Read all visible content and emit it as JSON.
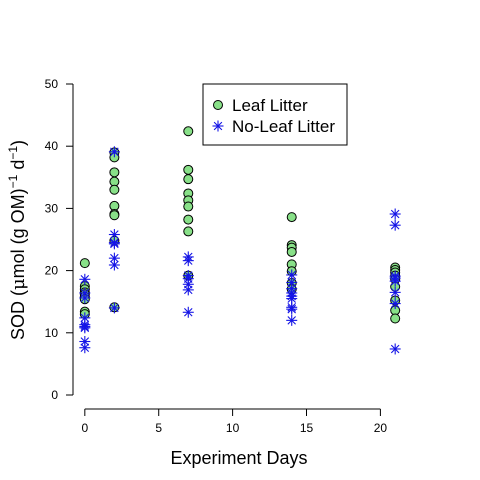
{
  "chart_data": {
    "type": "scatter",
    "title": "",
    "xlabel": "Experiment Days",
    "ylabel": {
      "prefix": "SOD (",
      "mu": "μ",
      "unit_pre_sup1": "mol (g OM)",
      "sup1": "−1",
      "unit_pre_sup2": " d",
      "sup2": "−1",
      "suffix": ")"
    },
    "xlim": [
      -0.8,
      21.8
    ],
    "ylim": [
      0,
      50
    ],
    "xticks": [
      0,
      5,
      10,
      15,
      20
    ],
    "yticks": [
      0,
      10,
      20,
      30,
      40,
      50
    ],
    "grid": false,
    "legend_position": "top-center",
    "series": [
      {
        "name": "Leaf Litter",
        "marker": "circle",
        "fill": "#88e088",
        "stroke": "#000000",
        "points": [
          [
            0,
            21.2
          ],
          [
            0,
            17.5
          ],
          [
            0,
            17.0
          ],
          [
            0,
            16.5
          ],
          [
            0,
            16.2
          ],
          [
            0,
            15.8
          ],
          [
            0,
            15.4
          ],
          [
            0,
            13.4
          ],
          [
            0,
            13.0
          ],
          [
            2,
            39.0
          ],
          [
            2,
            38.2
          ],
          [
            2,
            35.8
          ],
          [
            2,
            34.3
          ],
          [
            2,
            33.0
          ],
          [
            2,
            30.4
          ],
          [
            2,
            29.1
          ],
          [
            2,
            28.9
          ],
          [
            2,
            24.8
          ],
          [
            2,
            14.1
          ],
          [
            7,
            42.4
          ],
          [
            7,
            36.2
          ],
          [
            7,
            34.7
          ],
          [
            7,
            32.4
          ],
          [
            7,
            31.3
          ],
          [
            7,
            30.3
          ],
          [
            7,
            28.2
          ],
          [
            7,
            26.3
          ],
          [
            7,
            19.2
          ],
          [
            14,
            28.6
          ],
          [
            14,
            24.1
          ],
          [
            14,
            23.7
          ],
          [
            14,
            23.0
          ],
          [
            14,
            21.0
          ],
          [
            14,
            19.9
          ],
          [
            14,
            18.0
          ],
          [
            14,
            17.0
          ],
          [
            21,
            20.5
          ],
          [
            21,
            20.1
          ],
          [
            21,
            19.7
          ],
          [
            21,
            19.2
          ],
          [
            21,
            18.6
          ],
          [
            21,
            17.4
          ],
          [
            21,
            15.2
          ],
          [
            21,
            13.6
          ],
          [
            21,
            12.3
          ]
        ]
      },
      {
        "name": "No-Leaf Litter",
        "marker": "asterisk",
        "fill": "none",
        "stroke": "#1414e6",
        "points": [
          [
            0,
            18.6
          ],
          [
            0,
            16.4
          ],
          [
            0,
            15.6
          ],
          [
            0,
            12.4
          ],
          [
            0,
            11.3
          ],
          [
            0,
            11.0
          ],
          [
            0,
            10.8
          ],
          [
            0,
            8.6
          ],
          [
            0,
            7.6
          ],
          [
            2,
            39.1
          ],
          [
            2,
            25.8
          ],
          [
            2,
            24.5
          ],
          [
            2,
            24.3
          ],
          [
            2,
            22.0
          ],
          [
            2,
            20.9
          ],
          [
            2,
            14.0
          ],
          [
            7,
            22.2
          ],
          [
            7,
            21.6
          ],
          [
            7,
            19.2
          ],
          [
            7,
            18.7
          ],
          [
            7,
            17.8
          ],
          [
            7,
            16.9
          ],
          [
            7,
            13.3
          ],
          [
            14,
            19.3
          ],
          [
            14,
            18.1
          ],
          [
            14,
            17.1
          ],
          [
            14,
            16.4
          ],
          [
            14,
            15.9
          ],
          [
            14,
            15.5
          ],
          [
            14,
            14.1
          ],
          [
            14,
            13.8
          ],
          [
            14,
            12.0
          ],
          [
            21,
            29.1
          ],
          [
            21,
            27.3
          ],
          [
            21,
            19.1
          ],
          [
            21,
            18.8
          ],
          [
            21,
            18.3
          ],
          [
            21,
            16.5
          ],
          [
            21,
            14.7
          ],
          [
            21,
            7.4
          ]
        ]
      }
    ]
  }
}
